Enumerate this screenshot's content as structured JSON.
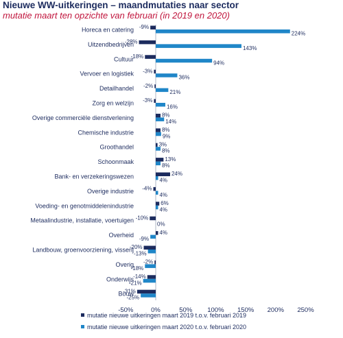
{
  "chart_data": {
    "type": "bar",
    "orientation": "horizontal",
    "title": "Nieuwe WW-uitkeringen – maandmutaties naar sector",
    "subtitle": "mutatie maart ten opzichte van februari (in 2019 en 2020)",
    "categories": [
      "Horeca en catering",
      "Uitzendbedrijven",
      "Cultuur",
      "Vervoer en logistiek",
      "Detailhandel",
      "Zorg en welzijn",
      "Overige commerciële dienstverlening",
      "Chemische industrie",
      "Groothandel",
      "Schoonmaak",
      "Bank- en verzekeringswezen",
      "Overige industrie",
      "Voeding- en genotmiddelenindustrie",
      "Metaalindustrie, installatie, voertuigen",
      "Overheid",
      "Landbouw, groenvoorziening, visserij",
      "Overig",
      "Onderwijs",
      "Bouw"
    ],
    "series": [
      {
        "name": "mutatie nieuwe uitkeringen maart 2019 t.o.v. februari 2019",
        "color": "#1c2b5e",
        "values": [
          -9,
          -28,
          -18,
          -3,
          -2,
          -3,
          8,
          8,
          3,
          13,
          24,
          -4,
          6,
          -10,
          4,
          -20,
          -2,
          -14,
          -31
        ],
        "labels": [
          "-9%",
          "-28%",
          "-18%",
          "-3%",
          "-2%",
          "-3%",
          "8%",
          "8%",
          "3%",
          "13%",
          "24%",
          "-4%",
          "6%",
          "-10%",
          "4%",
          "-20%",
          "-2%",
          "-14%",
          "-31%"
        ]
      },
      {
        "name": "mutatie nieuwe uitkeringen maart 2020 t.o.v. februari 2020",
        "color": "#1f86c8",
        "values": [
          224,
          143,
          94,
          36,
          21,
          16,
          14,
          9,
          8,
          8,
          4,
          4,
          4,
          0,
          -9,
          -13,
          -18,
          -21,
          -25
        ],
        "labels": [
          "224%",
          "143%",
          "94%",
          "36%",
          "21%",
          "16%",
          "14%",
          "9%",
          "8%",
          "8%",
          "4%",
          "4%",
          "4%",
          "0%",
          "-9%",
          "-13%",
          "-18%",
          "-21%",
          "-25%"
        ]
      }
    ],
    "xlim": [
      -50,
      250
    ],
    "xticks": [
      "-50%",
      "0%",
      "50%",
      "100%",
      "150%",
      "200%",
      "250%"
    ],
    "xtick_values": [
      -50,
      0,
      50,
      100,
      150,
      200,
      250
    ],
    "grid": false,
    "legend_position": "bottom"
  }
}
